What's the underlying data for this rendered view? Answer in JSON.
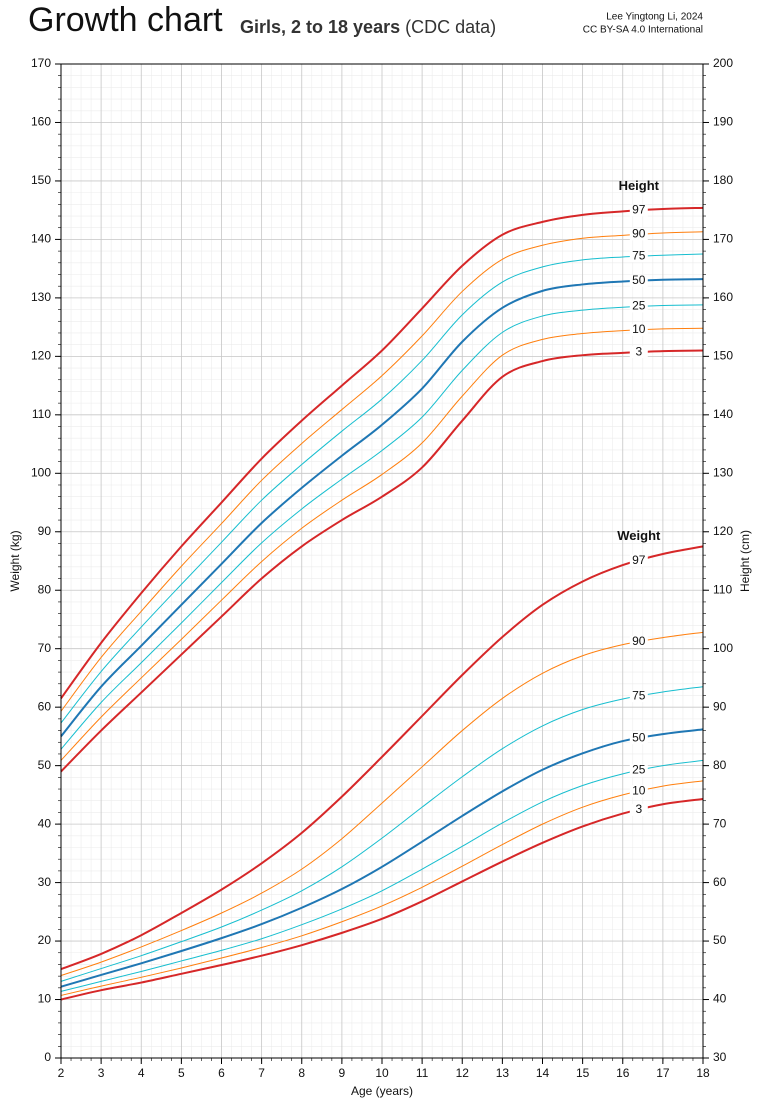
{
  "chart_data": {
    "type": "line",
    "title": "Growth chart",
    "subtitle": "Girls, 2 to 18 years",
    "subtitle_note": "(CDC data)",
    "credit": [
      "Lee Yingtong Li, 2024",
      "CC BY-SA 4.0 International"
    ],
    "xlabel": "Age (years)",
    "ylabel": "Weight (kg)",
    "y2label": "Height (cm)",
    "x": [
      2,
      3,
      4,
      5,
      6,
      7,
      8,
      9,
      10,
      11,
      12,
      13,
      14,
      15,
      16,
      17,
      18
    ],
    "xlim": [
      2,
      18
    ],
    "xticks": [
      2,
      3,
      4,
      5,
      6,
      7,
      8,
      9,
      10,
      11,
      12,
      13,
      14,
      15,
      16,
      17,
      18
    ],
    "ylim": [
      0,
      170
    ],
    "yticks": [
      0,
      10,
      20,
      30,
      40,
      50,
      60,
      70,
      80,
      90,
      100,
      110,
      120,
      130,
      140,
      150,
      160,
      170
    ],
    "y2lim": [
      30,
      200
    ],
    "y2ticks": [
      30,
      40,
      50,
      60,
      70,
      80,
      90,
      100,
      110,
      120,
      130,
      140,
      150,
      160,
      170,
      180,
      190,
      200
    ],
    "grid": true,
    "minor_step_x": 0.25,
    "minor_step_y": 2,
    "groups": [
      {
        "label": "Height",
        "axis": "y2",
        "color": "#d62728",
        "series": [
          {
            "name": "97",
            "color": "#d62728",
            "width": 2,
            "values": [
              91.5,
              101,
              109.5,
              117.5,
              125,
              132.5,
              139,
              145,
              151,
              158.2,
              165.5,
              170.8,
              173,
              174.2,
              174.8,
              175.2,
              175.4
            ]
          },
          {
            "name": "90",
            "color": "#ff7f0e",
            "width": 1,
            "values": [
              89.3,
              98.5,
              106.4,
              114.1,
              121.4,
              128.8,
              135.1,
              140.9,
              146.7,
              153.5,
              161.1,
              166.6,
              169,
              170.2,
              170.7,
              171.1,
              171.3
            ]
          },
          {
            "name": "75",
            "color": "#17becf",
            "width": 1,
            "values": [
              87.3,
              96.1,
              103.7,
              111,
              118.2,
              125.4,
              131.5,
              137.2,
              142.7,
              149.3,
              157.1,
              162.7,
              165.3,
              166.5,
              167,
              167.3,
              167.5
            ]
          },
          {
            "name": "50",
            "color": "#1f77b4",
            "width": 2,
            "values": [
              85,
              93.5,
              100.5,
              107.5,
              114.5,
              121.5,
              127.5,
              133,
              138.3,
              144.5,
              152.5,
              158.3,
              161.2,
              162.3,
              162.8,
              163.1,
              163.2
            ]
          },
          {
            "name": "25",
            "color": "#17becf",
            "width": 1,
            "values": [
              82.8,
              90.8,
              97.6,
              104.4,
              111.3,
              118.1,
              123.9,
              129,
              133.9,
              139.6,
              147.6,
              154.1,
              156.9,
              157.9,
              158.4,
              158.7,
              158.8
            ]
          },
          {
            "name": "10",
            "color": "#ff7f0e",
            "width": 1,
            "values": [
              80.9,
              88.3,
              95,
              101.6,
              108.3,
              114.9,
              120.6,
              125.4,
              129.8,
              135.2,
              143.2,
              150.2,
              152.9,
              153.9,
              154.4,
              154.7,
              154.8
            ]
          },
          {
            "name": "3",
            "color": "#d62728",
            "width": 2,
            "values": [
              79,
              86,
              92.5,
              99,
              105.5,
              112,
              117.5,
              122,
              126,
              131,
              139,
              146.5,
              149.2,
              150.2,
              150.6,
              150.9,
              151
            ]
          }
        ]
      },
      {
        "label": "Weight",
        "axis": "y",
        "color": "#d62728",
        "series": [
          {
            "name": "97",
            "color": "#d62728",
            "width": 2,
            "values": [
              15.2,
              17.8,
              21,
              24.8,
              28.8,
              33.3,
              38.5,
              44.7,
              51.5,
              58.5,
              65.5,
              72,
              77.5,
              81.5,
              84.3,
              86.2,
              87.5
            ]
          },
          {
            "name": "90",
            "color": "#ff7f0e",
            "width": 1,
            "values": [
              14.1,
              16.4,
              19,
              21.8,
              24.8,
              28.2,
              32.3,
              37.5,
              43.6,
              49.8,
              56,
              61.5,
              65.8,
              68.8,
              70.7,
              71.9,
              72.8
            ]
          },
          {
            "name": "75",
            "color": "#17becf",
            "width": 1,
            "values": [
              13.1,
              15.3,
              17.5,
              19.9,
              22.4,
              25.3,
              28.6,
              32.7,
              37.6,
              42.9,
              48.1,
              52.9,
              56.8,
              59.6,
              61.4,
              62.6,
              63.5
            ]
          },
          {
            "name": "50",
            "color": "#1f77b4",
            "width": 2,
            "values": [
              12.2,
              14.2,
              16.2,
              18.3,
              20.5,
              22.9,
              25.7,
              28.9,
              32.7,
              37,
              41.4,
              45.6,
              49.3,
              52.1,
              54.2,
              55.4,
              56.2
            ]
          },
          {
            "name": "25",
            "color": "#17becf",
            "width": 1,
            "values": [
              11.4,
              13.1,
              14.8,
              16.6,
              18.4,
              20.4,
              22.8,
              25.5,
              28.6,
              32.3,
              36.2,
              40.2,
              43.8,
              46.6,
              48.6,
              50,
              50.9
            ]
          },
          {
            "name": "10",
            "color": "#ff7f0e",
            "width": 1,
            "values": [
              10.7,
              12.3,
              13.8,
              15.4,
              17.1,
              18.9,
              20.9,
              23.3,
              26,
              29.2,
              32.8,
              36.5,
              40,
              42.9,
              45,
              46.5,
              47.4
            ]
          },
          {
            "name": "3",
            "color": "#d62728",
            "width": 2,
            "values": [
              10,
              11.6,
              12.9,
              14.4,
              15.9,
              17.5,
              19.3,
              21.4,
              23.8,
              26.8,
              30.2,
              33.6,
              36.8,
              39.6,
              41.8,
              43.4,
              44.3
            ]
          }
        ]
      }
    ]
  }
}
